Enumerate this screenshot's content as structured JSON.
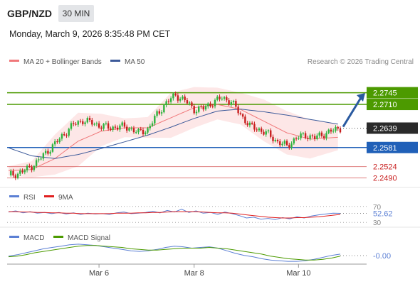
{
  "header": {
    "symbol": "GBP/NZD",
    "interval": "30 MIN",
    "datetime": "Monday, March 9, 2026 8:35:48 PM CET"
  },
  "colors": {
    "bullish": "#2db33d",
    "bearish": "#c81e1e",
    "ma20": "#f0787a",
    "ma50": "#3d5a9a",
    "bollinger_fill": "#fde3e3",
    "resistance": "#4c9a00",
    "support": "#2060b8",
    "price_box": "#2a2a2a",
    "arrow": "#2a5aa0",
    "rsi": "#5b7fd4",
    "rsi_ma": "#e02020",
    "macd": "#5b7fd4",
    "macd_signal": "#4c9a00"
  },
  "chart_data": [
    {
      "type": "candlestick",
      "title": "GBP/NZD 30 MIN",
      "legend": [
        "MA 20 + Bollinger Bands",
        "MA 50"
      ],
      "copyright": "Research © 2026 Trading Central",
      "ylim": [
        2.247,
        2.281
      ],
      "last_price": 2.2639,
      "levels": [
        {
          "value": 2.2745,
          "label": "2.2745",
          "kind": "resistance"
        },
        {
          "value": 2.271,
          "label": "2.2710",
          "kind": "resistance"
        },
        {
          "value": 2.2581,
          "label": "2.2581",
          "kind": "support"
        },
        {
          "value": 2.2524,
          "label": "2.2524",
          "kind": "target"
        },
        {
          "value": 2.249,
          "label": "2.2490",
          "kind": "target"
        }
      ],
      "price_path": [
        [
          0,
          2.2498
        ],
        [
          4,
          2.2503
        ],
        [
          8,
          2.2516
        ],
        [
          12,
          2.2536
        ],
        [
          16,
          2.2565
        ],
        [
          20,
          2.2592
        ],
        [
          24,
          2.2622
        ],
        [
          28,
          2.265
        ],
        [
          32,
          2.2662
        ],
        [
          36,
          2.2655
        ],
        [
          40,
          2.2645
        ],
        [
          44,
          2.264
        ],
        [
          48,
          2.2644
        ],
        [
          52,
          2.264
        ],
        [
          56,
          2.2625
        ],
        [
          60,
          2.2635
        ],
        [
          64,
          2.268
        ],
        [
          68,
          2.2715
        ],
        [
          72,
          2.2738
        ],
        [
          76,
          2.2722
        ],
        [
          80,
          2.2695
        ],
        [
          84,
          2.2698
        ],
        [
          88,
          2.2716
        ],
        [
          92,
          2.273
        ],
        [
          96,
          2.2718
        ],
        [
          100,
          2.268
        ],
        [
          104,
          2.2645
        ],
        [
          108,
          2.2635
        ],
        [
          112,
          2.262
        ],
        [
          116,
          2.2598
        ],
        [
          120,
          2.2585
        ],
        [
          124,
          2.261
        ],
        [
          128,
          2.2618
        ],
        [
          132,
          2.261
        ],
        [
          136,
          2.2622
        ],
        [
          140,
          2.2632
        ],
        [
          143,
          2.2639
        ]
      ],
      "ma20_path": [
        [
          0,
          2.2512
        ],
        [
          10,
          2.2515
        ],
        [
          20,
          2.2548
        ],
        [
          30,
          2.26
        ],
        [
          40,
          2.263
        ],
        [
          50,
          2.264
        ],
        [
          60,
          2.264
        ],
        [
          70,
          2.267
        ],
        [
          80,
          2.27
        ],
        [
          90,
          2.271
        ],
        [
          100,
          2.2695
        ],
        [
          110,
          2.266
        ],
        [
          120,
          2.2625
        ],
        [
          130,
          2.2606
        ],
        [
          143,
          2.2612
        ]
      ],
      "bollinger_upper": [
        [
          0,
          2.2525
        ],
        [
          10,
          2.254
        ],
        [
          20,
          2.262
        ],
        [
          30,
          2.2685
        ],
        [
          40,
          2.2682
        ],
        [
          50,
          2.2668
        ],
        [
          60,
          2.2672
        ],
        [
          70,
          2.2745
        ],
        [
          80,
          2.2762
        ],
        [
          90,
          2.276
        ],
        [
          100,
          2.2745
        ],
        [
          110,
          2.2725
        ],
        [
          120,
          2.269
        ],
        [
          130,
          2.2665
        ],
        [
          143,
          2.265
        ]
      ],
      "bollinger_lower": [
        [
          0,
          2.2497
        ],
        [
          10,
          2.2492
        ],
        [
          20,
          2.25
        ],
        [
          30,
          2.2525
        ],
        [
          40,
          2.2585
        ],
        [
          50,
          2.2612
        ],
        [
          60,
          2.261
        ],
        [
          70,
          2.261
        ],
        [
          80,
          2.264
        ],
        [
          90,
          2.2665
        ],
        [
          100,
          2.265
        ],
        [
          110,
          2.26
        ],
        [
          120,
          2.256
        ],
        [
          130,
          2.2548
        ],
        [
          143,
          2.2575
        ]
      ],
      "ma50_path": [
        [
          0,
          2.258
        ],
        [
          10,
          2.2556
        ],
        [
          20,
          2.2548
        ],
        [
          30,
          2.256
        ],
        [
          40,
          2.2578
        ],
        [
          50,
          2.2598
        ],
        [
          60,
          2.2618
        ],
        [
          70,
          2.2642
        ],
        [
          80,
          2.2668
        ],
        [
          90,
          2.269
        ],
        [
          100,
          2.2696
        ],
        [
          110,
          2.2688
        ],
        [
          120,
          2.2678
        ],
        [
          130,
          2.2665
        ],
        [
          143,
          2.265
        ]
      ]
    },
    {
      "type": "line",
      "legend": [
        "RSI",
        "9MA"
      ],
      "ylim": [
        25,
        75
      ],
      "ticks": [
        {
          "value": 70,
          "label": "70"
        },
        {
          "value": 30,
          "label": "30"
        }
      ],
      "last_value": 52.62,
      "last_label": "52.62",
      "series": [
        {
          "name": "RSI",
          "values": [
            56,
            59,
            54,
            57,
            53,
            55,
            52,
            55,
            51,
            54,
            50,
            53,
            51,
            52,
            50,
            54,
            56,
            52,
            53,
            55,
            58,
            54,
            60,
            56,
            63,
            55,
            59,
            53,
            55,
            50,
            56,
            52,
            47,
            41,
            43,
            38,
            40,
            37,
            42,
            39,
            44,
            41,
            46,
            49,
            51,
            53,
            52.6
          ]
        },
        {
          "name": "9MA",
          "values": [
            57,
            57,
            56,
            56,
            55,
            55,
            54,
            54,
            53,
            53,
            52,
            52,
            52,
            52,
            52,
            53,
            53,
            53,
            54,
            54,
            55,
            55,
            56,
            57,
            57,
            57,
            57,
            56,
            55,
            54,
            54,
            53,
            51,
            49,
            47,
            45,
            43,
            42,
            41,
            41,
            42,
            42,
            43,
            44,
            46,
            48,
            50
          ]
        }
      ]
    },
    {
      "type": "line",
      "legend": [
        "MACD",
        "MACD Signal"
      ],
      "last_value": -0.0,
      "last_label": "-0.00",
      "x_ticks": [
        {
          "x": 39,
          "label": "Mar 6"
        },
        {
          "x": 80,
          "label": "Mar 8"
        },
        {
          "x": 125,
          "label": "Mar 10"
        }
      ],
      "series": [
        {
          "name": "MACD",
          "values": [
            -0.0004,
            -0.0002,
            0.0001,
            0.0004,
            0.0007,
            0.0009,
            0.0011,
            0.0013,
            0.0014,
            0.0013,
            0.0012,
            0.001,
            0.0008,
            0.0006,
            0.0004,
            0.0003,
            0.0004,
            0.0006,
            0.0009,
            0.0011,
            0.001,
            0.0008,
            0.0009,
            0.001,
            0.0008,
            0.0004,
            0.0,
            -0.0003,
            -0.0005,
            -0.0008,
            -0.001,
            -0.0011,
            -0.0012,
            -0.0012,
            -0.0011,
            -0.0009,
            -0.0006,
            -0.0003,
            -0.0001
          ]
        },
        {
          "name": "MACD Signal",
          "values": [
            -0.0005,
            -0.0004,
            -0.0002,
            0.0001,
            0.0003,
            0.0005,
            0.0007,
            0.0009,
            0.0011,
            0.0012,
            0.0012,
            0.0011,
            0.001,
            0.0009,
            0.0007,
            0.0006,
            0.0005,
            0.0005,
            0.0006,
            0.0007,
            0.0008,
            0.0008,
            0.0008,
            0.0009,
            0.0008,
            0.0007,
            0.0005,
            0.0003,
            0.0001,
            -0.0001,
            -0.0004,
            -0.0006,
            -0.0008,
            -0.0009,
            -0.001,
            -0.001,
            -0.0009,
            -0.0007,
            -0.0004
          ]
        }
      ]
    }
  ]
}
